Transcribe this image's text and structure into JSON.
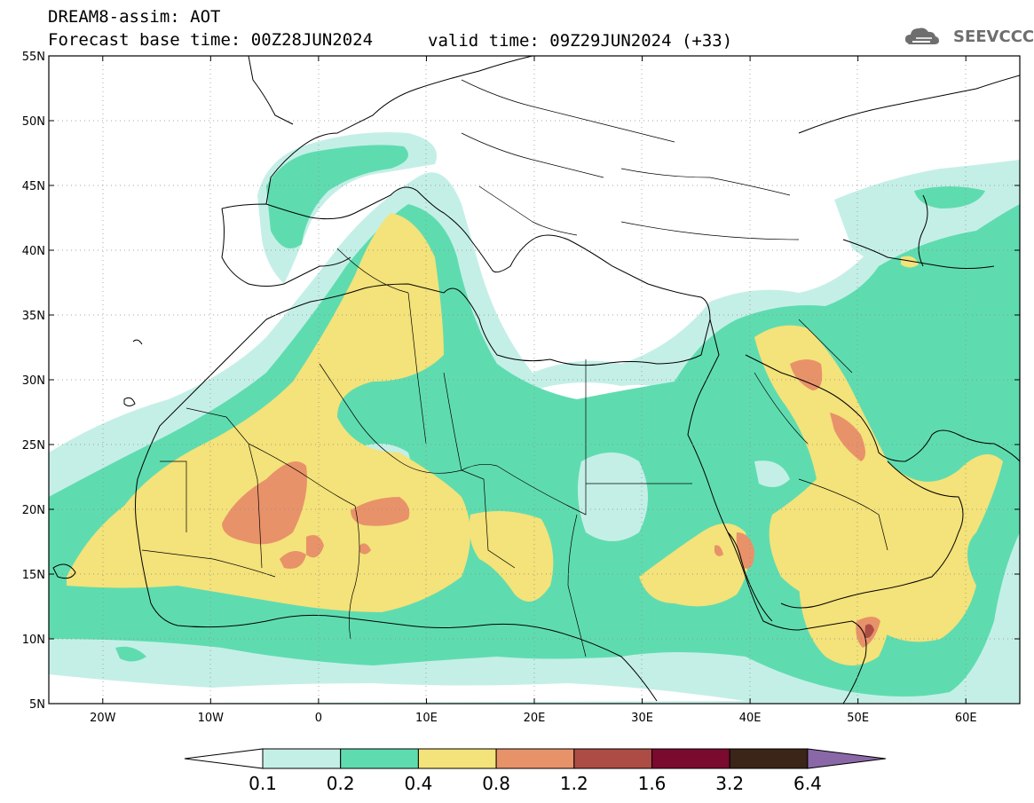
{
  "header": {
    "line1": "DREAM8-assim: AOT",
    "line2": "Forecast base time: 00Z28JUN2024",
    "valid": "valid time: 09Z29JUN2024 (+33)",
    "logo": "SEEVCCC"
  },
  "map": {
    "lon_range": [
      -25,
      65
    ],
    "lat_range": [
      5,
      55
    ],
    "lat_labels": [
      "55N",
      "50N",
      "45N",
      "40N",
      "35N",
      "30N",
      "25N",
      "20N",
      "15N",
      "10N",
      "5N"
    ],
    "lat_values": [
      55,
      50,
      45,
      40,
      35,
      30,
      25,
      20,
      15,
      10,
      5
    ],
    "lon_labels": [
      "20W",
      "10W",
      "0",
      "10E",
      "20E",
      "30E",
      "40E",
      "50E",
      "60E"
    ],
    "lon_values": [
      -20,
      -10,
      0,
      10,
      20,
      30,
      40,
      50,
      60
    ]
  },
  "colorbar": {
    "labels": [
      "0.1",
      "0.2",
      "0.4",
      "0.8",
      "1.2",
      "1.6",
      "3.2",
      "6.4"
    ],
    "colors": [
      "#c4efe7",
      "#5fdcaf",
      "#f4e27a",
      "#e8926a",
      "#ad4c44",
      "#7a0a2e",
      "#3b2418",
      "#8a68a8"
    ]
  },
  "colors": {
    "level1": "#c4efe7",
    "level2": "#5fdcaf",
    "level3": "#f4e27a",
    "level4": "#e8926a",
    "level5": "#ad4c44"
  }
}
